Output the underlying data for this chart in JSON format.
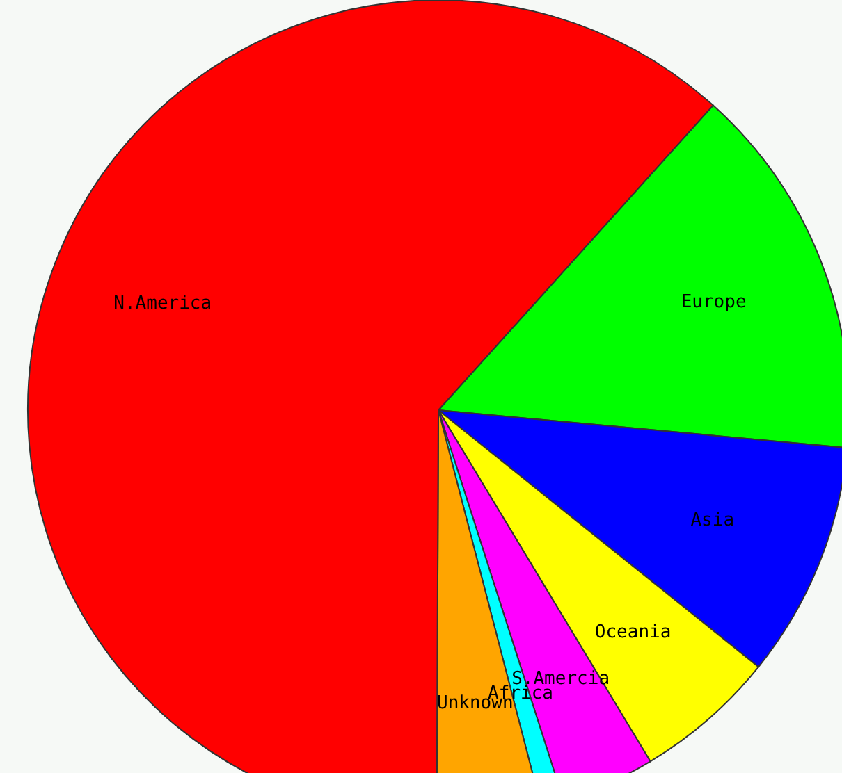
{
  "chart_data": {
    "type": "pie",
    "categories": [
      "Europe",
      "Asia",
      "Oceania",
      "S.Amercia",
      "Africa",
      "Unknown",
      "N.America"
    ],
    "values": [
      14.8,
      9.3,
      5.6,
      3.7,
      0.9,
      4.1,
      61.6
    ],
    "colors": [
      "#00ff00",
      "#0000ff",
      "#ffff00",
      "#ff00ff",
      "#00ffff",
      "#ffa500",
      "#ff0000"
    ]
  }
}
